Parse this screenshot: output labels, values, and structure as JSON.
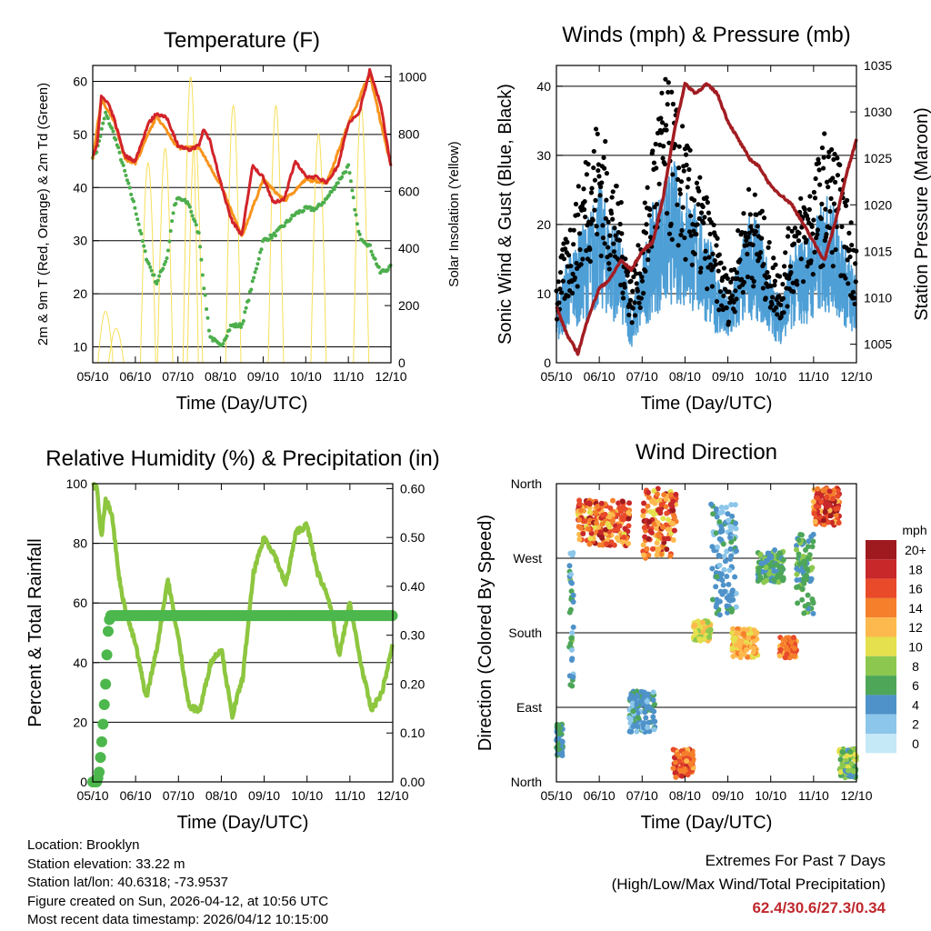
{
  "colors": {
    "temp_red": "#d2232a",
    "temp_orange": "#f7941d",
    "dewpoint_green": "#4cae4c",
    "solar_yellow": "#f7df5a",
    "wind_blue": "#4e9fd6",
    "gust_black": "#000000",
    "pressure_maroon": "#a21d22",
    "rh_green": "#8dc63f",
    "precip_green": "#4cb74c",
    "extremes_red": "#c0282d"
  },
  "info": {
    "location": "Location: Brooklyn",
    "elevation": "Station elevation: 33.22 m",
    "latlon": "Station lat/lon: 40.6318; -73.9537",
    "created": "Figure created on Sun, 2026-04-12, at 10:56 UTC",
    "timestamp": "Most recent data timestamp: 2026/04/12 10:15:00"
  },
  "extremes": {
    "line1": "Extremes For Past 7 Days",
    "line2": "(High/Low/Max Wind/Total Precipitation)",
    "values": "62.4/30.6/27.3/0.34"
  },
  "chart_data": [
    {
      "id": "temperature",
      "type": "line",
      "title": "Temperature (F)",
      "xlabel": "Time (Day/UTC)",
      "ylabel": "2m & 9m T (Red, Orange) & 2m Td (Green)",
      "y2label": "Solar Insolation (Yellow)",
      "x_ticks": [
        "05/10",
        "06/10",
        "07/10",
        "08/10",
        "09/10",
        "10/10",
        "11/10",
        "12/10"
      ],
      "ylim": [
        7,
        63
      ],
      "y_ticks": [
        10,
        20,
        30,
        40,
        50,
        60
      ],
      "y2lim": [
        0,
        1040
      ],
      "y2_ticks": [
        0,
        200,
        400,
        600,
        800,
        1000
      ],
      "grid": true,
      "series": [
        {
          "name": "2m T",
          "x": [
            0,
            0.1,
            0.2,
            0.35,
            0.5,
            0.75,
            1,
            1.3,
            1.5,
            1.75,
            2,
            2.25,
            2.5,
            2.6,
            2.75,
            3,
            3.25,
            3.5,
            3.75,
            4,
            4.25,
            4.5,
            4.75,
            5,
            5.25,
            5.5,
            5.75,
            6,
            6.25,
            6.5,
            6.75,
            7
          ],
          "values": [
            46,
            48,
            57,
            56,
            53,
            46,
            45,
            52,
            54,
            53,
            48,
            47,
            48,
            51,
            49,
            41,
            34,
            31,
            44,
            42,
            37,
            38,
            45,
            42,
            42,
            41,
            44,
            52,
            54,
            62,
            56,
            44
          ]
        },
        {
          "name": "9m T",
          "x": [
            0,
            0.2,
            0.5,
            0.75,
            1,
            1.5,
            2,
            2.5,
            3,
            3.5,
            4,
            4.5,
            5,
            5.5,
            6,
            6.5,
            7
          ],
          "values": [
            45.5,
            56.5,
            52.5,
            45.5,
            44.5,
            53.5,
            47.5,
            47.5,
            40.5,
            30.8,
            41.5,
            37.5,
            41.5,
            41,
            52,
            61.5,
            44
          ]
        },
        {
          "name": "2m Td",
          "x": [
            0,
            0.1,
            0.3,
            0.5,
            0.75,
            1,
            1.25,
            1.5,
            1.75,
            1.9,
            2,
            2.25,
            2.5,
            2.6,
            2.75,
            3,
            3.25,
            3.5,
            3.75,
            4,
            4.25,
            4.5,
            4.75,
            5,
            5.25,
            5.5,
            5.75,
            6,
            6.25,
            6.5,
            6.75,
            7
          ],
          "values": [
            46,
            47,
            54,
            50,
            43,
            36,
            27,
            22,
            27,
            36,
            38,
            37,
            31,
            22,
            12,
            10,
            14,
            14,
            22,
            30,
            31,
            33,
            35,
            36,
            36,
            38,
            41,
            44,
            31,
            29,
            24,
            25
          ]
        },
        {
          "name": "Solar Insolation",
          "axis": "y2",
          "peaks": [
            [
              0.3,
              180
            ],
            [
              0.55,
              120
            ],
            [
              1.3,
              700
            ],
            [
              1.7,
              750
            ],
            [
              2.3,
              1000
            ],
            [
              2.4,
              800
            ],
            [
              3.3,
              900
            ],
            [
              4.3,
              900
            ],
            [
              5.3,
              800
            ],
            [
              6.3,
              900
            ]
          ]
        }
      ]
    },
    {
      "id": "winds",
      "type": "line",
      "title": "Winds (mph) & Pressure (mb)",
      "xlabel": "Time (Day/UTC)",
      "ylabel": "Sonic Wind & Gust (Blue, Black)",
      "y2label": "Station Pressure (Maroon)",
      "x_ticks": [
        "05/10",
        "06/10",
        "07/10",
        "08/10",
        "09/10",
        "10/10",
        "11/10",
        "12/10"
      ],
      "ylim": [
        0,
        43
      ],
      "y_ticks": [
        0,
        10,
        20,
        30,
        40
      ],
      "y2lim": [
        1003,
        1035
      ],
      "y2_ticks": [
        1005,
        1010,
        1015,
        1020,
        1025,
        1030,
        1035
      ],
      "grid": true,
      "series": [
        {
          "name": "Sonic Wind",
          "x": [
            0,
            0.25,
            0.5,
            0.75,
            1,
            1.25,
            1.5,
            1.75,
            2,
            2.25,
            2.5,
            2.75,
            3,
            3.25,
            3.5,
            3.75,
            4,
            4.25,
            4.5,
            4.75,
            5,
            5.25,
            5.5,
            5.75,
            6,
            6.25,
            6.5,
            6.75,
            7
          ],
          "values": [
            6,
            10,
            12,
            14,
            17,
            14,
            12,
            5,
            10,
            15,
            17,
            19,
            17,
            15,
            13,
            9,
            6,
            10,
            14,
            13,
            8,
            6,
            11,
            12,
            13,
            16,
            15,
            11,
            8
          ]
        },
        {
          "name": "Gust",
          "x": [
            0,
            0.25,
            0.5,
            0.75,
            1,
            1.25,
            1.5,
            1.75,
            2,
            2.25,
            2.5,
            2.75,
            3,
            3.25,
            3.5,
            3.75,
            4,
            4.25,
            4.5,
            4.75,
            5,
            5.25,
            5.5,
            5.75,
            6,
            6.25,
            6.5,
            6.75,
            7
          ],
          "values": [
            9,
            14,
            18,
            24,
            26,
            21,
            17,
            9,
            14,
            24,
            30,
            28,
            24,
            20,
            18,
            13,
            9,
            14,
            19,
            17,
            12,
            10,
            16,
            18,
            20,
            24,
            23,
            18,
            13
          ]
        },
        {
          "name": "Station Pressure",
          "axis": "y2",
          "x": [
            0,
            0.25,
            0.5,
            0.75,
            1,
            1.25,
            1.5,
            1.75,
            2,
            2.25,
            2.5,
            2.75,
            3,
            3.25,
            3.5,
            3.75,
            4,
            4.25,
            4.5,
            4.75,
            5,
            5.25,
            5.5,
            5.75,
            6,
            6.25,
            6.5,
            6.75,
            7
          ],
          "values": [
            1009,
            1006,
            1004,
            1008,
            1011,
            1012,
            1014,
            1013,
            1015,
            1016,
            1021,
            1028,
            1033,
            1032,
            1033,
            1032,
            1029,
            1027,
            1025,
            1024,
            1022,
            1021,
            1020,
            1018,
            1016,
            1014,
            1018,
            1023,
            1027
          ]
        }
      ]
    },
    {
      "id": "humidity",
      "type": "line",
      "title": "Relative Humidity (%) & Precipitation (in)",
      "xlabel": "Time (Day/UTC)",
      "ylabel": "Percent & Total Rainfall",
      "x_ticks": [
        "05/10",
        "06/10",
        "07/10",
        "08/10",
        "09/10",
        "10/10",
        "11/10",
        "12/10"
      ],
      "ylim": [
        0,
        100
      ],
      "y_ticks": [
        0,
        20,
        40,
        60,
        80,
        100
      ],
      "y2lim": [
        0,
        0.61
      ],
      "y2_ticks": [
        "0.00",
        "0.10",
        "0.20",
        "0.30",
        "0.40",
        "0.50",
        "0.60"
      ],
      "grid": true,
      "series": [
        {
          "name": "Relative Humidity",
          "x": [
            0,
            0.1,
            0.2,
            0.3,
            0.45,
            0.6,
            0.75,
            1,
            1.25,
            1.5,
            1.75,
            2,
            2.25,
            2.5,
            2.75,
            3,
            3.25,
            3.5,
            3.75,
            4,
            4.25,
            4.5,
            4.75,
            5,
            5.25,
            5.5,
            5.75,
            6,
            6.25,
            6.5,
            6.75,
            7
          ],
          "values": [
            100,
            98,
            82,
            95,
            90,
            70,
            58,
            46,
            28,
            45,
            68,
            48,
            25,
            24,
            40,
            45,
            22,
            35,
            70,
            82,
            76,
            66,
            84,
            86,
            70,
            62,
            42,
            60,
            40,
            24,
            30,
            46
          ]
        },
        {
          "name": "Total Precipitation",
          "axis": "y2",
          "x": [
            0,
            0.1,
            0.15,
            0.2,
            0.25,
            0.3,
            0.35,
            0.4,
            1,
            7
          ],
          "values": [
            0,
            0,
            0.02,
            0.07,
            0.13,
            0.2,
            0.3,
            0.34,
            0.34,
            0.34
          ]
        }
      ]
    },
    {
      "id": "wind_direction",
      "type": "scatter",
      "title": "Wind Direction",
      "xlabel": "Time (Day/UTC)",
      "ylabel": "Direction (Colored By Speed)",
      "x_ticks": [
        "05/10",
        "06/10",
        "07/10",
        "08/10",
        "09/10",
        "10/10",
        "11/10",
        "12/10"
      ],
      "y_ticks": [
        "North",
        "East",
        "South",
        "West",
        "North"
      ],
      "ylim": [
        0,
        360
      ],
      "grid": true,
      "legend": {
        "title": "mph",
        "placement": "right",
        "labels": [
          "20+",
          "18",
          "16",
          "14",
          "12",
          "10",
          "8",
          "6",
          "4",
          "2",
          "0"
        ]
      },
      "clusters": [
        {
          "x": [
            0,
            0.15
          ],
          "dir": [
            30,
            70
          ],
          "speed": [
            4,
            6
          ]
        },
        {
          "x": [
            0.3,
            0.4
          ],
          "dir": [
            110,
            280
          ],
          "speed": [
            2,
            8
          ]
        },
        {
          "x": [
            0.5,
            1.7
          ],
          "dir": [
            285,
            340
          ],
          "speed": [
            10,
            20
          ]
        },
        {
          "x": [
            1.7,
            2.3
          ],
          "dir": [
            60,
            110
          ],
          "speed": [
            2,
            6
          ]
        },
        {
          "x": [
            2.0,
            2.8
          ],
          "dir": [
            270,
            355
          ],
          "speed": [
            10,
            20
          ]
        },
        {
          "x": [
            2.7,
            3.2
          ],
          "dir": [
            5,
            40
          ],
          "speed": [
            12,
            18
          ]
        },
        {
          "x": [
            3.2,
            3.6
          ],
          "dir": [
            170,
            195
          ],
          "speed": [
            8,
            12
          ]
        },
        {
          "x": [
            3.6,
            4.2
          ],
          "dir": [
            200,
            340
          ],
          "speed": [
            2,
            6
          ]
        },
        {
          "x": [
            4.1,
            4.7
          ],
          "dir": [
            150,
            185
          ],
          "speed": [
            10,
            14
          ]
        },
        {
          "x": [
            4.7,
            5.3
          ],
          "dir": [
            240,
            280
          ],
          "speed": [
            4,
            8
          ]
        },
        {
          "x": [
            5.2,
            5.6
          ],
          "dir": [
            150,
            175
          ],
          "speed": [
            12,
            16
          ]
        },
        {
          "x": [
            5.6,
            6.0
          ],
          "dir": [
            200,
            300
          ],
          "speed": [
            4,
            8
          ]
        },
        {
          "x": [
            6.0,
            6.6
          ],
          "dir": [
            310,
            355
          ],
          "speed": [
            12,
            20
          ]
        },
        {
          "x": [
            6.6,
            7.0
          ],
          "dir": [
            5,
            40
          ],
          "speed": [
            4,
            10
          ]
        }
      ]
    }
  ]
}
